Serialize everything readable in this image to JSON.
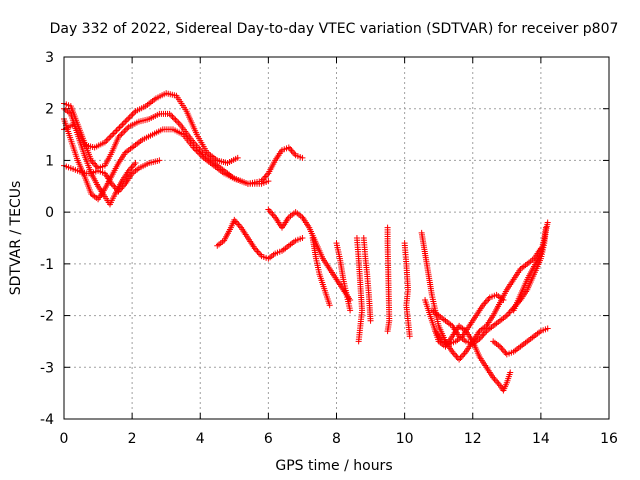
{
  "chart_data": {
    "type": "scatter",
    "title": "Day 332 of 2022, Sidereal Day-to-day VTEC variation (SDTVAR) for receiver p807",
    "xlabel": "GPS time / hours",
    "ylabel": "SDTVAR / TECUs",
    "xlim": [
      0,
      16
    ],
    "ylim": [
      -4,
      3
    ],
    "xticks": [
      "0",
      "2",
      "4",
      "6",
      "8",
      "10",
      "12",
      "14",
      "16"
    ],
    "yticks": [
      "-4",
      "-3",
      "-2",
      "-1",
      "0",
      "1",
      "2",
      "3"
    ],
    "grid": true,
    "marker": "+",
    "color": "#ff0000",
    "tracks": [
      [
        [
          0.0,
          1.6
        ],
        [
          0.3,
          1.7
        ],
        [
          0.6,
          1.3
        ],
        [
          0.9,
          1.25
        ],
        [
          1.2,
          1.35
        ],
        [
          1.5,
          1.55
        ],
        [
          1.8,
          1.75
        ],
        [
          2.1,
          1.95
        ],
        [
          2.4,
          2.05
        ],
        [
          2.7,
          2.2
        ],
        [
          3.0,
          2.3
        ],
        [
          3.3,
          2.25
        ],
        [
          3.6,
          1.95
        ],
        [
          3.9,
          1.5
        ],
        [
          4.2,
          1.15
        ],
        [
          4.5,
          1.0
        ],
        [
          4.8,
          0.95
        ],
        [
          5.1,
          1.05
        ]
      ],
      [
        [
          0.0,
          2.1
        ],
        [
          0.2,
          2.05
        ],
        [
          0.4,
          1.7
        ],
        [
          0.6,
          1.35
        ],
        [
          0.8,
          1.0
        ],
        [
          1.0,
          0.85
        ],
        [
          1.2,
          0.9
        ],
        [
          1.4,
          1.15
        ],
        [
          1.6,
          1.45
        ],
        [
          1.9,
          1.65
        ],
        [
          2.2,
          1.75
        ],
        [
          2.5,
          1.8
        ],
        [
          2.8,
          1.9
        ],
        [
          3.1,
          1.9
        ],
        [
          3.4,
          1.7
        ],
        [
          3.8,
          1.35
        ],
        [
          4.2,
          1.05
        ],
        [
          4.6,
          0.85
        ],
        [
          5.0,
          0.65
        ],
        [
          5.4,
          0.55
        ],
        [
          5.8,
          0.6
        ],
        [
          6.0,
          0.75
        ],
        [
          6.2,
          1.0
        ],
        [
          6.4,
          1.2
        ],
        [
          6.6,
          1.25
        ],
        [
          6.8,
          1.1
        ],
        [
          7.0,
          1.05
        ]
      ],
      [
        [
          0.0,
          1.8
        ],
        [
          0.2,
          1.4
        ],
        [
          0.4,
          1.0
        ],
        [
          0.6,
          0.7
        ],
        [
          0.8,
          0.35
        ],
        [
          1.0,
          0.25
        ],
        [
          1.2,
          0.45
        ],
        [
          1.4,
          0.7
        ],
        [
          1.6,
          0.95
        ],
        [
          1.8,
          1.15
        ],
        [
          2.0,
          1.25
        ],
        [
          2.3,
          1.4
        ],
        [
          2.6,
          1.5
        ],
        [
          2.9,
          1.6
        ],
        [
          3.2,
          1.6
        ],
        [
          3.5,
          1.5
        ],
        [
          3.8,
          1.25
        ],
        [
          4.1,
          1.05
        ],
        [
          4.4,
          0.9
        ],
        [
          4.7,
          0.75
        ],
        [
          5.0,
          0.65
        ],
        [
          5.4,
          0.55
        ],
        [
          5.8,
          0.55
        ],
        [
          6.0,
          0.6
        ]
      ],
      [
        [
          0.0,
          0.9
        ],
        [
          0.2,
          0.85
        ],
        [
          0.4,
          0.8
        ],
        [
          0.6,
          0.75
        ],
        [
          0.8,
          0.75
        ],
        [
          1.0,
          0.8
        ],
        [
          1.2,
          0.75
        ],
        [
          1.4,
          0.55
        ],
        [
          1.6,
          0.4
        ],
        [
          1.8,
          0.55
        ],
        [
          2.0,
          0.75
        ],
        [
          2.2,
          0.85
        ],
        [
          2.5,
          0.95
        ],
        [
          2.8,
          1.0
        ]
      ],
      [
        [
          0.0,
          2.0
        ],
        [
          0.2,
          1.9
        ],
        [
          0.4,
          1.5
        ],
        [
          0.6,
          1.1
        ],
        [
          0.8,
          0.75
        ],
        [
          1.0,
          0.5
        ],
        [
          1.2,
          0.3
        ],
        [
          1.35,
          0.15
        ],
        [
          1.5,
          0.35
        ],
        [
          1.7,
          0.6
        ],
        [
          1.9,
          0.8
        ],
        [
          2.1,
          0.95
        ]
      ],
      [
        [
          4.5,
          -0.65
        ],
        [
          4.7,
          -0.55
        ],
        [
          4.9,
          -0.3
        ],
        [
          5.0,
          -0.15
        ],
        [
          5.2,
          -0.3
        ],
        [
          5.4,
          -0.5
        ],
        [
          5.6,
          -0.7
        ],
        [
          5.8,
          -0.85
        ],
        [
          6.0,
          -0.9
        ],
        [
          6.2,
          -0.8
        ],
        [
          6.4,
          -0.75
        ],
        [
          6.6,
          -0.65
        ],
        [
          6.8,
          -0.55
        ],
        [
          7.0,
          -0.5
        ]
      ],
      [
        [
          6.0,
          0.05
        ],
        [
          6.2,
          -0.1
        ],
        [
          6.4,
          -0.3
        ],
        [
          6.6,
          -0.1
        ],
        [
          6.8,
          0.0
        ],
        [
          7.0,
          -0.1
        ],
        [
          7.2,
          -0.3
        ],
        [
          7.4,
          -0.6
        ],
        [
          7.6,
          -0.9
        ],
        [
          7.8,
          -1.1
        ],
        [
          8.0,
          -1.3
        ],
        [
          8.2,
          -1.5
        ],
        [
          8.4,
          -1.7
        ]
      ],
      [
        [
          7.3,
          -0.5
        ],
        [
          7.4,
          -0.9
        ],
        [
          7.5,
          -1.2
        ],
        [
          7.6,
          -1.4
        ],
        [
          7.7,
          -1.6
        ],
        [
          7.8,
          -1.8
        ]
      ],
      [
        [
          8.0,
          -0.6
        ],
        [
          8.1,
          -0.9
        ],
        [
          8.2,
          -1.3
        ],
        [
          8.3,
          -1.6
        ],
        [
          8.4,
          -1.9
        ]
      ],
      [
        [
          8.6,
          -0.5
        ],
        [
          8.65,
          -0.9
        ],
        [
          8.7,
          -1.4
        ],
        [
          8.75,
          -1.9
        ],
        [
          8.7,
          -2.2
        ],
        [
          8.65,
          -2.5
        ]
      ],
      [
        [
          8.8,
          -0.5
        ],
        [
          8.85,
          -0.9
        ],
        [
          8.9,
          -1.2
        ],
        [
          8.95,
          -1.6
        ],
        [
          9.0,
          -2.1
        ]
      ],
      [
        [
          9.5,
          -0.3
        ],
        [
          9.5,
          -0.6
        ],
        [
          9.55,
          -2.1
        ],
        [
          9.5,
          -2.3
        ]
      ],
      [
        [
          10.0,
          -0.6
        ],
        [
          10.05,
          -1.0
        ],
        [
          10.1,
          -1.5
        ],
        [
          10.05,
          -1.8
        ],
        [
          10.1,
          -2.1
        ],
        [
          10.15,
          -2.4
        ]
      ],
      [
        [
          10.5,
          -0.4
        ],
        [
          10.6,
          -0.8
        ],
        [
          10.7,
          -1.2
        ],
        [
          10.8,
          -1.6
        ],
        [
          10.9,
          -1.9
        ],
        [
          11.0,
          -2.2
        ],
        [
          11.2,
          -2.5
        ],
        [
          11.4,
          -2.7
        ],
        [
          11.6,
          -2.85
        ],
        [
          11.8,
          -2.7
        ],
        [
          12.0,
          -2.5
        ],
        [
          12.2,
          -2.3
        ],
        [
          12.4,
          -2.2
        ],
        [
          12.6,
          -2.0
        ],
        [
          12.8,
          -1.75
        ],
        [
          13.0,
          -1.5
        ],
        [
          13.2,
          -1.3
        ],
        [
          13.4,
          -1.1
        ],
        [
          13.6,
          -1.0
        ],
        [
          13.8,
          -0.9
        ],
        [
          14.0,
          -0.7
        ]
      ],
      [
        [
          10.6,
          -1.7
        ],
        [
          10.8,
          -2.1
        ],
        [
          11.0,
          -2.5
        ],
        [
          11.2,
          -2.6
        ],
        [
          11.4,
          -2.4
        ],
        [
          11.6,
          -2.2
        ],
        [
          11.8,
          -2.3
        ],
        [
          12.0,
          -2.5
        ],
        [
          12.2,
          -2.8
        ],
        [
          12.4,
          -3.0
        ],
        [
          12.6,
          -3.2
        ],
        [
          12.8,
          -3.35
        ],
        [
          12.9,
          -3.45
        ],
        [
          13.0,
          -3.3
        ],
        [
          13.1,
          -3.1
        ]
      ],
      [
        [
          10.8,
          -1.9
        ],
        [
          11.0,
          -2.0
        ],
        [
          11.2,
          -2.1
        ],
        [
          11.4,
          -2.2
        ],
        [
          11.6,
          -2.4
        ],
        [
          11.8,
          -2.5
        ],
        [
          12.0,
          -2.55
        ],
        [
          12.2,
          -2.45
        ],
        [
          12.4,
          -2.3
        ],
        [
          12.6,
          -2.2
        ],
        [
          12.8,
          -2.1
        ],
        [
          13.0,
          -2.0
        ],
        [
          13.2,
          -1.85
        ],
        [
          13.4,
          -1.7
        ],
        [
          13.6,
          -1.5
        ],
        [
          13.8,
          -1.2
        ],
        [
          14.0,
          -0.9
        ],
        [
          14.1,
          -0.6
        ],
        [
          14.15,
          -0.35
        ],
        [
          14.2,
          -0.2
        ]
      ],
      [
        [
          10.9,
          -2.3
        ],
        [
          11.1,
          -2.5
        ],
        [
          11.3,
          -2.55
        ],
        [
          11.5,
          -2.5
        ],
        [
          11.7,
          -2.4
        ],
        [
          11.9,
          -2.2
        ],
        [
          12.1,
          -2.0
        ],
        [
          12.3,
          -1.8
        ],
        [
          12.5,
          -1.65
        ],
        [
          12.7,
          -1.6
        ],
        [
          12.9,
          -1.7
        ]
      ],
      [
        [
          12.6,
          -2.5
        ],
        [
          12.8,
          -2.6
        ],
        [
          13.0,
          -2.75
        ],
        [
          13.2,
          -2.7
        ],
        [
          13.4,
          -2.6
        ],
        [
          13.6,
          -2.5
        ],
        [
          13.8,
          -2.4
        ],
        [
          14.0,
          -2.3
        ],
        [
          14.2,
          -2.25
        ]
      ],
      [
        [
          13.2,
          -1.9
        ],
        [
          13.4,
          -1.6
        ],
        [
          13.6,
          -1.3
        ],
        [
          13.8,
          -1.05
        ],
        [
          14.0,
          -0.8
        ],
        [
          14.1,
          -0.5
        ],
        [
          14.15,
          -0.3
        ]
      ]
    ]
  }
}
